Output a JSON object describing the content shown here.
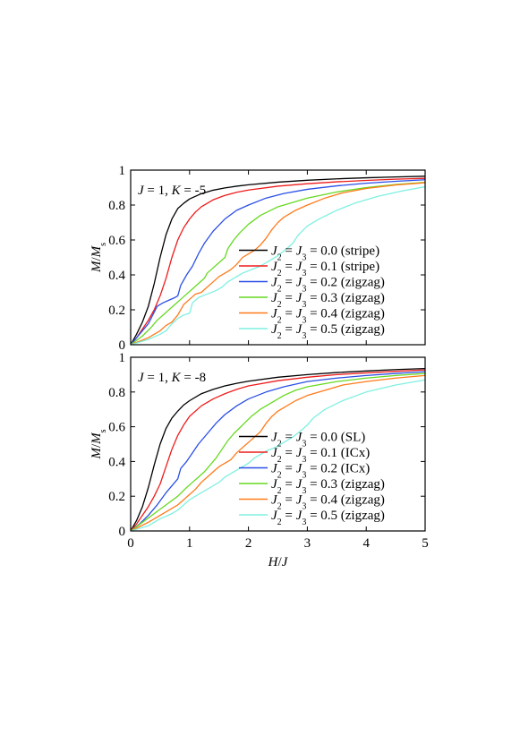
{
  "chart_data": [
    {
      "type": "line",
      "annotation": {
        "parts": [
          {
            "t": "J",
            "i": true
          },
          {
            "t": " = 1, ",
            "i": false
          },
          {
            "t": "K",
            "i": true
          },
          {
            "t": " = -5",
            "i": false
          }
        ]
      },
      "ylabel": "M/Ms",
      "xlabel": "",
      "xlim": [
        0,
        5
      ],
      "ylim": [
        0,
        1
      ],
      "xticks": [
        0,
        1,
        2,
        3,
        4,
        5
      ],
      "yticks": [
        0,
        0.2,
        0.4,
        0.6,
        0.8,
        1
      ],
      "xticklabels": [
        "",
        "",
        "",
        "",
        "",
        ""
      ],
      "yticklabels": [
        "0",
        "0.2",
        "0.4",
        "0.6",
        "0.8",
        "1"
      ],
      "legend_position": "lower-right",
      "series": [
        {
          "name": "J2 = J3 = 0.0 (stripe)",
          "value": "0.0",
          "state": "(stripe)",
          "color": "#000000",
          "x": [
            0,
            0.1,
            0.2,
            0.3,
            0.4,
            0.5,
            0.6,
            0.7,
            0.8,
            0.9,
            1.0,
            1.2,
            1.4,
            1.6,
            1.8,
            2.0,
            2.5,
            3.0,
            3.5,
            4.0,
            4.5,
            5.0
          ],
          "y": [
            0,
            0.06,
            0.13,
            0.22,
            0.35,
            0.5,
            0.63,
            0.72,
            0.78,
            0.81,
            0.835,
            0.865,
            0.885,
            0.898,
            0.908,
            0.916,
            0.931,
            0.942,
            0.95,
            0.956,
            0.961,
            0.965
          ]
        },
        {
          "name": "J2 = J3 = 0.1 (stripe)",
          "value": "0.1",
          "state": "(stripe)",
          "color": "#ee1c1c",
          "x": [
            0,
            0.1,
            0.2,
            0.3,
            0.4,
            0.5,
            0.6,
            0.7,
            0.8,
            0.9,
            1.0,
            1.1,
            1.2,
            1.4,
            1.6,
            1.8,
            2.0,
            2.5,
            3.0,
            3.5,
            4.0,
            4.5,
            5.0
          ],
          "y": [
            0,
            0.04,
            0.09,
            0.14,
            0.2,
            0.28,
            0.38,
            0.5,
            0.6,
            0.67,
            0.72,
            0.76,
            0.79,
            0.83,
            0.855,
            0.873,
            0.886,
            0.908,
            0.922,
            0.933,
            0.941,
            0.948,
            0.953
          ]
        },
        {
          "name": "J2 = J3 = 0.2 (zigzag)",
          "value": "0.2",
          "state": "(zigzag)",
          "color": "#2a4fe6",
          "x": [
            0,
            0.15,
            0.3,
            0.45,
            0.55,
            0.65,
            0.75,
            0.8,
            0.85,
            0.95,
            1.05,
            1.15,
            1.25,
            1.4,
            1.6,
            1.8,
            2.0,
            2.3,
            2.6,
            3.0,
            3.5,
            4.0,
            4.5,
            5.0
          ],
          "y": [
            0,
            0.06,
            0.12,
            0.22,
            0.24,
            0.255,
            0.27,
            0.28,
            0.34,
            0.4,
            0.45,
            0.52,
            0.58,
            0.65,
            0.72,
            0.77,
            0.8,
            0.84,
            0.866,
            0.89,
            0.91,
            0.925,
            0.936,
            0.945
          ]
        },
        {
          "name": "J2 = J3 = 0.3 (zigzag)",
          "value": "0.3",
          "state": "(zigzag)",
          "color": "#66d921",
          "x": [
            0,
            0.2,
            0.35,
            0.45,
            0.55,
            0.65,
            0.75,
            0.85,
            0.95,
            1.05,
            1.15,
            1.25,
            1.3,
            1.4,
            1.5,
            1.6,
            1.65,
            1.75,
            1.85,
            2.0,
            2.2,
            2.5,
            3.0,
            3.5,
            4.0,
            4.5,
            5.0
          ],
          "y": [
            0,
            0.05,
            0.1,
            0.14,
            0.17,
            0.2,
            0.23,
            0.26,
            0.29,
            0.32,
            0.35,
            0.38,
            0.41,
            0.44,
            0.47,
            0.5,
            0.55,
            0.6,
            0.64,
            0.69,
            0.74,
            0.79,
            0.84,
            0.875,
            0.9,
            0.918,
            0.93
          ]
        },
        {
          "name": "J2 = J3 = 0.4 (zigzag)",
          "value": "0.4",
          "state": "(zigzag)",
          "color": "#ff7a1a",
          "x": [
            0,
            0.3,
            0.5,
            0.6,
            0.7,
            0.8,
            0.9,
            1.0,
            1.1,
            1.2,
            1.3,
            1.4,
            1.5,
            1.6,
            1.7,
            1.8,
            1.9,
            2.0,
            2.1,
            2.2,
            2.3,
            2.4,
            2.5,
            2.6,
            2.8,
            3.0,
            3.3,
            3.6,
            4.0,
            4.5,
            5.0
          ],
          "y": [
            0,
            0.04,
            0.08,
            0.11,
            0.13,
            0.17,
            0.23,
            0.26,
            0.29,
            0.3,
            0.33,
            0.36,
            0.39,
            0.41,
            0.43,
            0.46,
            0.5,
            0.52,
            0.54,
            0.57,
            0.61,
            0.66,
            0.7,
            0.73,
            0.77,
            0.8,
            0.84,
            0.87,
            0.895,
            0.915,
            0.928
          ]
        },
        {
          "name": "J2 = J3 = 0.5 (zigzag)",
          "value": "0.5",
          "state": "(zigzag)",
          "color": "#7ff0e0",
          "x": [
            0,
            0.3,
            0.5,
            0.6,
            0.7,
            0.8,
            0.9,
            1.0,
            1.05,
            1.15,
            1.3,
            1.45,
            1.55,
            1.65,
            1.75,
            1.9,
            2.05,
            2.2,
            2.35,
            2.5,
            2.65,
            2.75,
            2.85,
            3.0,
            3.2,
            3.5,
            3.8,
            4.2,
            4.6,
            5.0
          ],
          "y": [
            0,
            0.03,
            0.06,
            0.08,
            0.12,
            0.15,
            0.17,
            0.18,
            0.24,
            0.27,
            0.29,
            0.31,
            0.33,
            0.36,
            0.38,
            0.41,
            0.43,
            0.45,
            0.48,
            0.51,
            0.55,
            0.58,
            0.63,
            0.68,
            0.72,
            0.77,
            0.81,
            0.85,
            0.88,
            0.905
          ]
        }
      ]
    },
    {
      "type": "line",
      "annotation": {
        "parts": [
          {
            "t": "J",
            "i": true
          },
          {
            "t": " = 1, ",
            "i": false
          },
          {
            "t": "K",
            "i": true
          },
          {
            "t": " = -8",
            "i": false
          }
        ]
      },
      "ylabel": "M/Ms",
      "xlabel": "H/J",
      "xlim": [
        0,
        5
      ],
      "ylim": [
        0,
        1
      ],
      "xticks": [
        0,
        1,
        2,
        3,
        4,
        5
      ],
      "yticks": [
        0,
        0.2,
        0.4,
        0.6,
        0.8,
        1
      ],
      "xticklabels": [
        "0",
        "1",
        "2",
        "3",
        "4",
        "5"
      ],
      "yticklabels": [
        "0",
        "0.2",
        "0.4",
        "0.6",
        "0.8",
        "1"
      ],
      "legend_position": "lower-right",
      "series": [
        {
          "name": "J2 = J3 = 0.0 (SL)",
          "value": "0.0",
          "state": "(SL)",
          "color": "#000000",
          "x": [
            0,
            0.1,
            0.2,
            0.3,
            0.4,
            0.5,
            0.6,
            0.7,
            0.8,
            0.9,
            1.0,
            1.2,
            1.4,
            1.6,
            1.8,
            2.0,
            2.5,
            3.0,
            3.5,
            4.0,
            4.5,
            5.0
          ],
          "y": [
            0,
            0.06,
            0.14,
            0.25,
            0.38,
            0.5,
            0.59,
            0.65,
            0.69,
            0.725,
            0.75,
            0.79,
            0.815,
            0.835,
            0.85,
            0.862,
            0.885,
            0.9,
            0.912,
            0.921,
            0.929,
            0.935
          ]
        },
        {
          "name": "J2 = J3 = 0.1 (ICx)",
          "value": "0.1",
          "state": "(ICx)",
          "color": "#ee1c1c",
          "x": [
            0,
            0.1,
            0.2,
            0.3,
            0.4,
            0.5,
            0.6,
            0.7,
            0.8,
            0.9,
            1.0,
            1.2,
            1.4,
            1.6,
            1.8,
            2.0,
            2.5,
            3.0,
            3.5,
            4.0,
            4.5,
            5.0
          ],
          "y": [
            0,
            0.04,
            0.09,
            0.14,
            0.2,
            0.27,
            0.37,
            0.47,
            0.55,
            0.61,
            0.66,
            0.72,
            0.76,
            0.79,
            0.815,
            0.835,
            0.865,
            0.885,
            0.9,
            0.91,
            0.919,
            0.927
          ]
        },
        {
          "name": "J2 = J3 = 0.2 (ICx)",
          "value": "0.2",
          "state": "(ICx)",
          "color": "#2a4fe6",
          "x": [
            0,
            0.15,
            0.3,
            0.45,
            0.6,
            0.7,
            0.8,
            0.85,
            0.95,
            1.05,
            1.15,
            1.3,
            1.45,
            1.6,
            1.8,
            2.0,
            2.3,
            2.6,
            3.0,
            3.5,
            4.0,
            4.5,
            5.0
          ],
          "y": [
            0,
            0.04,
            0.09,
            0.15,
            0.22,
            0.26,
            0.3,
            0.36,
            0.4,
            0.45,
            0.5,
            0.56,
            0.62,
            0.67,
            0.72,
            0.76,
            0.8,
            0.83,
            0.86,
            0.88,
            0.895,
            0.907,
            0.917
          ]
        },
        {
          "name": "J2 = J3 = 0.3 (zigzag)",
          "value": "0.3",
          "state": "(zigzag)",
          "color": "#66d921",
          "x": [
            0,
            0.2,
            0.4,
            0.6,
            0.8,
            0.95,
            1.05,
            1.15,
            1.25,
            1.35,
            1.45,
            1.55,
            1.65,
            1.75,
            1.9,
            2.05,
            2.2,
            2.4,
            2.6,
            2.8,
            3.0,
            3.5,
            4.0,
            4.5,
            5.0
          ],
          "y": [
            0,
            0.05,
            0.1,
            0.15,
            0.2,
            0.25,
            0.28,
            0.31,
            0.34,
            0.38,
            0.42,
            0.47,
            0.52,
            0.56,
            0.61,
            0.66,
            0.7,
            0.74,
            0.78,
            0.81,
            0.83,
            0.86,
            0.88,
            0.895,
            0.907
          ]
        },
        {
          "name": "J2 = J3 = 0.4 (zigzag)",
          "value": "0.4",
          "state": "(zigzag)",
          "color": "#ff7a1a",
          "x": [
            0,
            0.3,
            0.5,
            0.7,
            0.8,
            0.9,
            1.0,
            1.1,
            1.2,
            1.3,
            1.4,
            1.5,
            1.6,
            1.7,
            1.8,
            1.9,
            2.0,
            2.1,
            2.2,
            2.3,
            2.4,
            2.5,
            2.6,
            2.8,
            3.0,
            3.3,
            3.6,
            4.0,
            4.5,
            5.0
          ],
          "y": [
            0,
            0.05,
            0.09,
            0.13,
            0.15,
            0.18,
            0.21,
            0.24,
            0.28,
            0.31,
            0.34,
            0.37,
            0.39,
            0.41,
            0.45,
            0.48,
            0.51,
            0.54,
            0.57,
            0.62,
            0.66,
            0.69,
            0.71,
            0.75,
            0.78,
            0.81,
            0.84,
            0.86,
            0.88,
            0.895
          ]
        },
        {
          "name": "J2 = J3 = 0.5 (zigzag)",
          "value": "0.5",
          "state": "(zigzag)",
          "color": "#7ff0e0",
          "x": [
            0,
            0.3,
            0.5,
            0.7,
            0.8,
            0.9,
            1.0,
            1.1,
            1.2,
            1.35,
            1.5,
            1.6,
            1.7,
            1.8,
            1.9,
            2.0,
            2.1,
            2.2,
            2.3,
            2.45,
            2.6,
            2.75,
            2.9,
            3.0,
            3.1,
            3.3,
            3.6,
            4.0,
            4.5,
            5.0
          ],
          "y": [
            0,
            0.03,
            0.07,
            0.1,
            0.12,
            0.15,
            0.18,
            0.2,
            0.22,
            0.25,
            0.28,
            0.31,
            0.33,
            0.35,
            0.37,
            0.39,
            0.42,
            0.44,
            0.46,
            0.48,
            0.51,
            0.54,
            0.58,
            0.61,
            0.65,
            0.7,
            0.75,
            0.8,
            0.84,
            0.87
          ]
        }
      ]
    }
  ]
}
